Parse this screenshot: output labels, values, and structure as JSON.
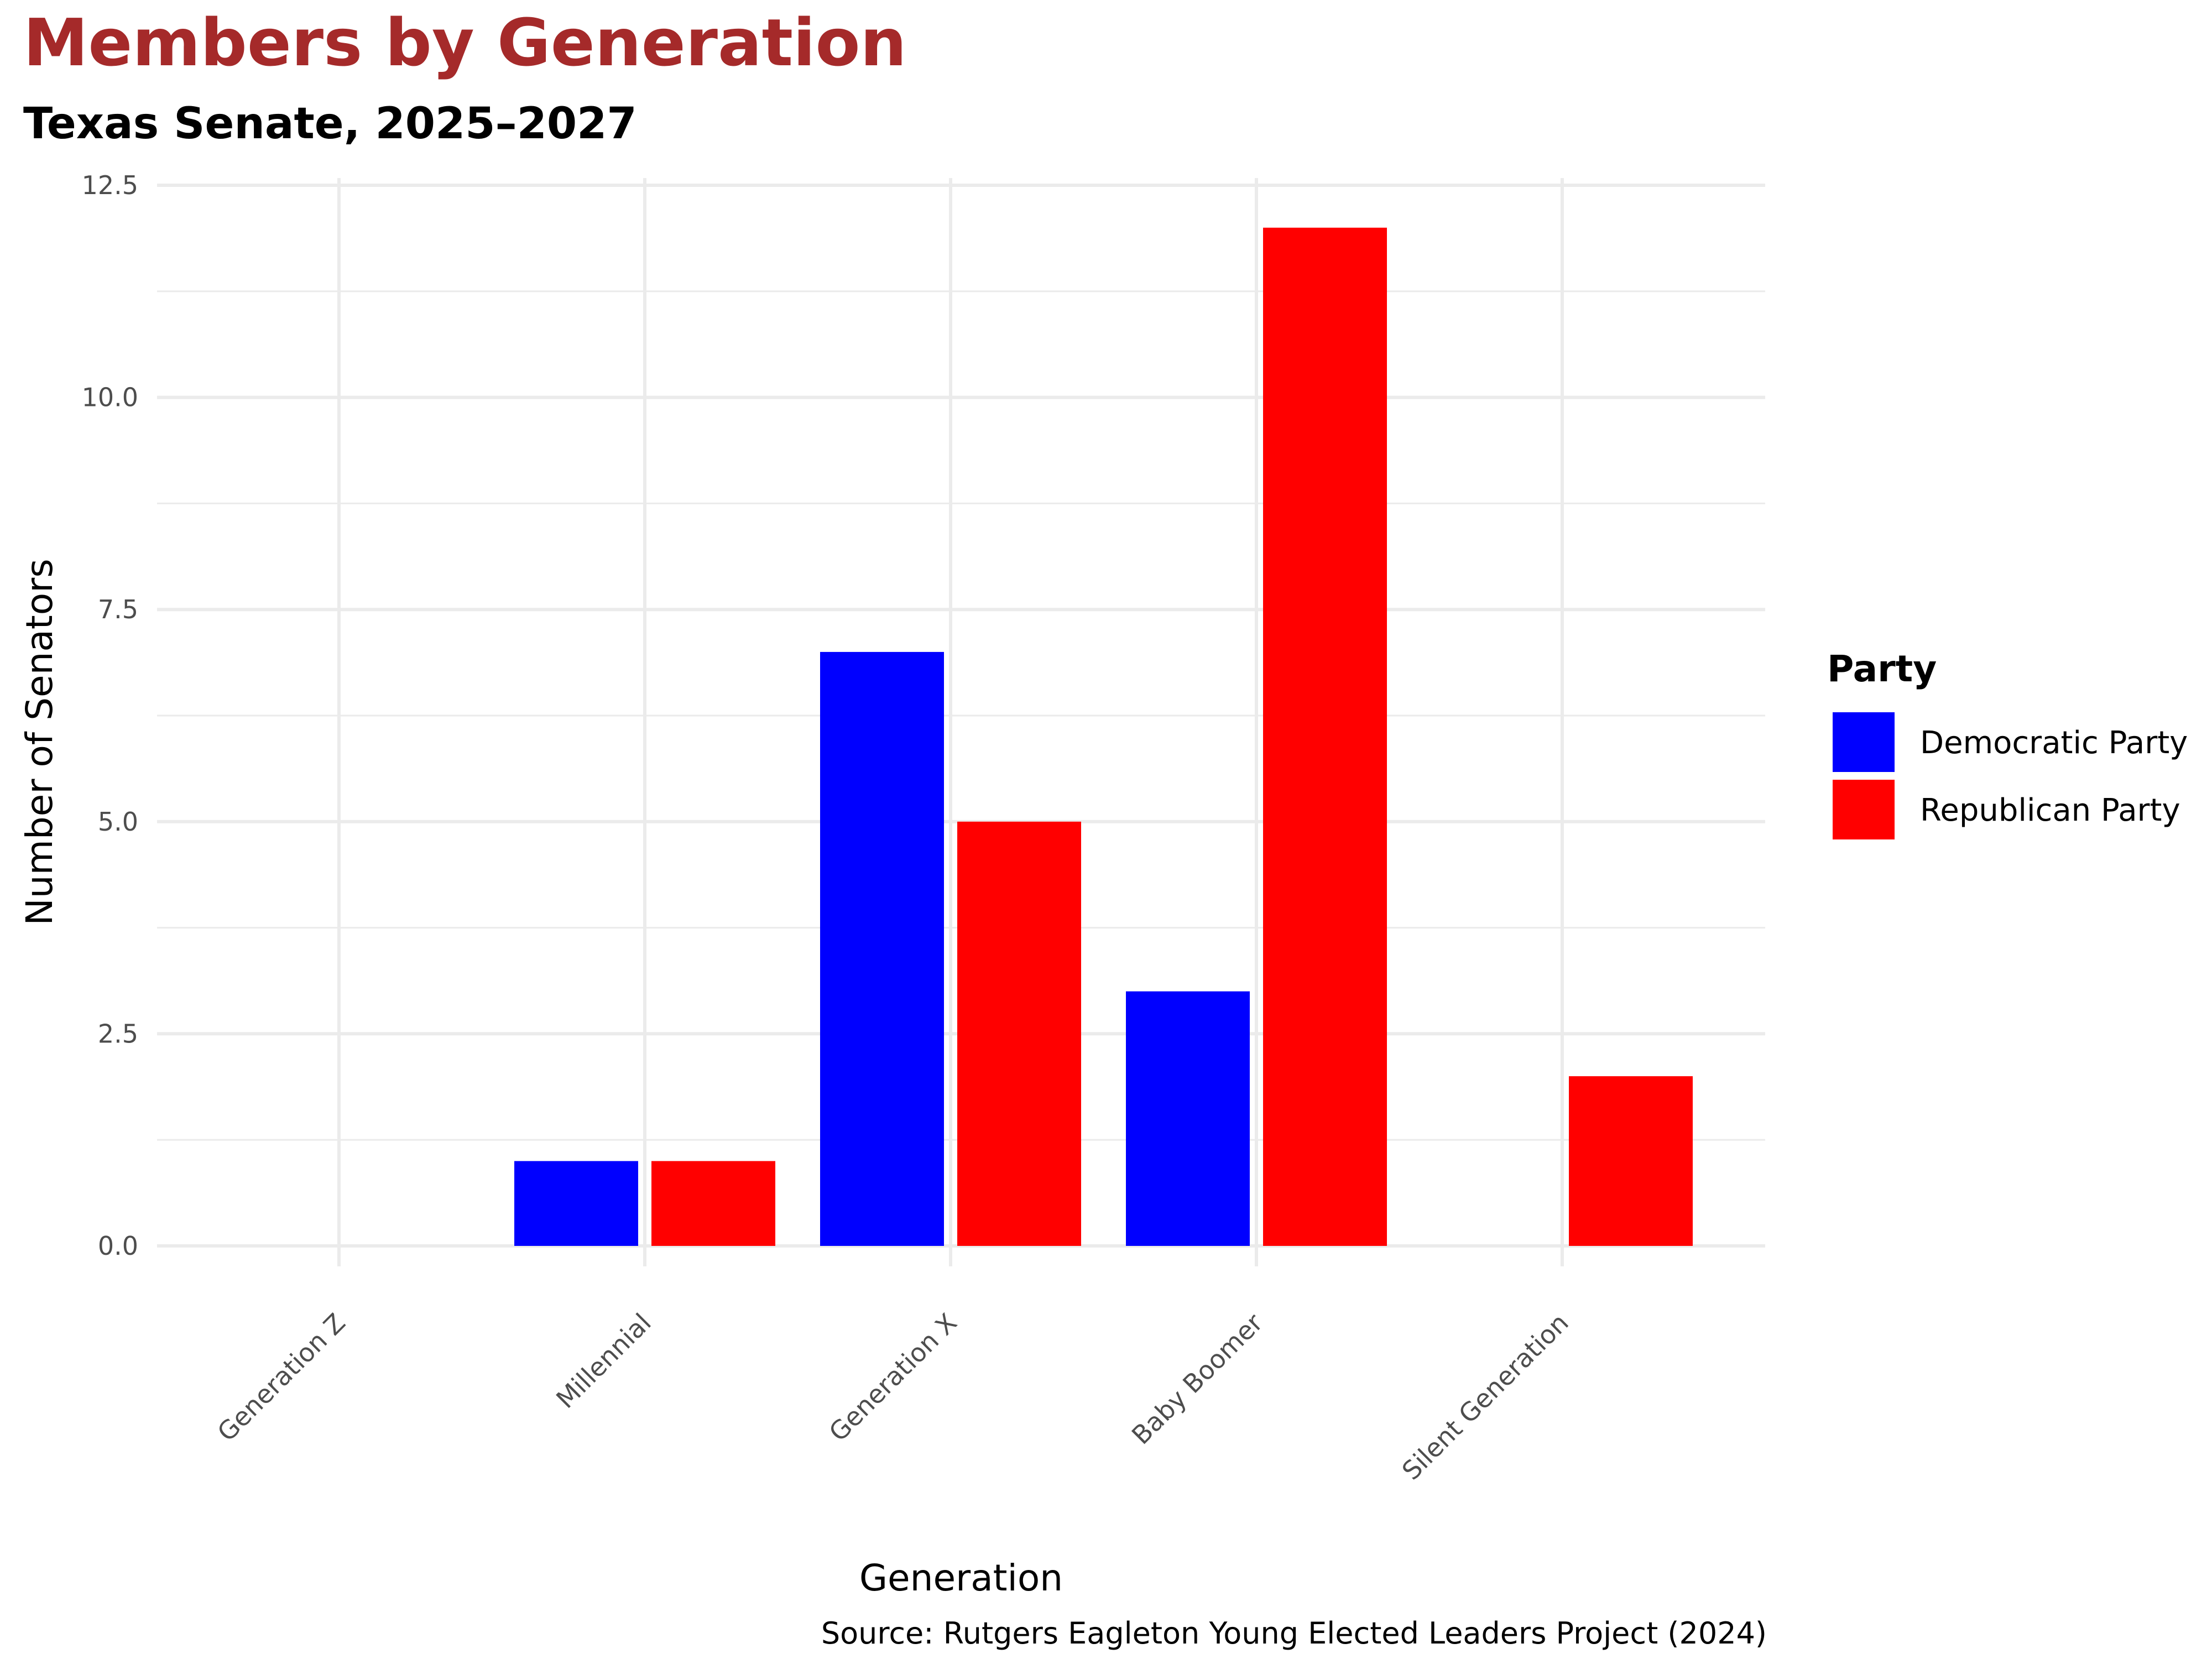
{
  "chart_data": {
    "type": "bar",
    "title": "Members by Generation",
    "subtitle": "Texas Senate, 2025–2027",
    "xlabel": "Generation",
    "ylabel": "Number of Senators",
    "caption": "Source: Rutgers Eagleton Young Elected Leaders Project (2024)",
    "categories": [
      "Generation Z",
      "Millennial",
      "Generation X",
      "Baby Boomer",
      "Silent Generation"
    ],
    "series": [
      {
        "name": "Democratic Party",
        "color": "#0000FF",
        "values": [
          0,
          1,
          7,
          3,
          0
        ]
      },
      {
        "name": "Republican Party",
        "color": "#FF0000",
        "values": [
          0,
          1,
          5,
          12,
          2
        ]
      }
    ],
    "yticks": [
      0,
      2.5,
      5,
      7.5,
      10,
      12.5
    ],
    "ytick_labels": [
      "0.0",
      "2.5",
      "5.0",
      "7.5",
      "10.0",
      "12.5"
    ],
    "ylim": [
      0,
      12.5
    ],
    "grid": true,
    "legend": {
      "title": "Party",
      "position": "right"
    },
    "colors": {
      "title": "#A52A2A",
      "grid": "#EBEBEB",
      "tick_text": "#4D4D4D"
    }
  }
}
